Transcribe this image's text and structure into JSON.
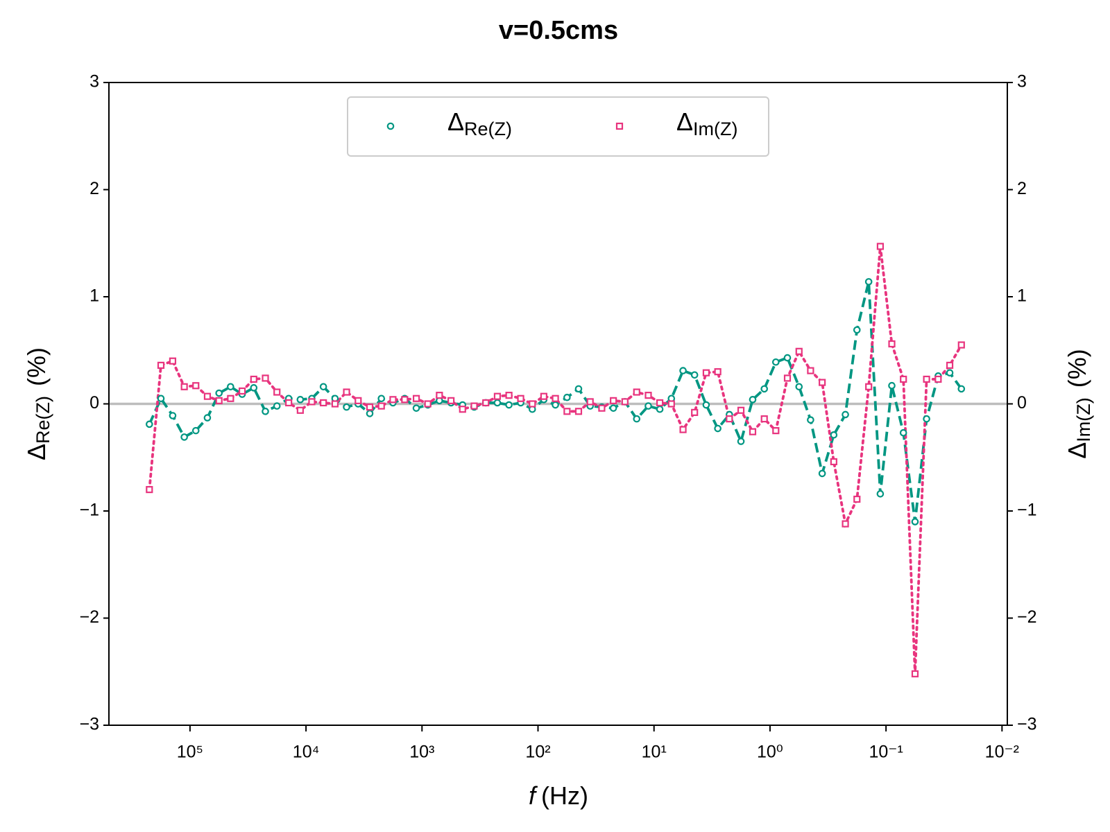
{
  "chart_data": {
    "type": "line",
    "title": "v=0.5cms",
    "x_label": {
      "italic": "f",
      "rest": "(Hz)"
    },
    "y_label": {
      "base": "Δ",
      "sub": "Re(Z)",
      "unit": "(%)"
    },
    "y2_label": {
      "base": "Δ",
      "sub": "Im(Z)",
      "unit": "(%)"
    },
    "xscale": "log",
    "xlim": [
      500000,
      0.009
    ],
    "xticks": [
      {
        "value": 100000,
        "label": "10⁵"
      },
      {
        "value": 10000,
        "label": "10⁴"
      },
      {
        "value": 1000,
        "label": "10³"
      },
      {
        "value": 100,
        "label": "10²"
      },
      {
        "value": 10,
        "label": "10¹"
      },
      {
        "value": 1,
        "label": "10⁰"
      },
      {
        "value": 0.1,
        "label": "10⁻¹"
      },
      {
        "value": 0.01,
        "label": "10⁻²"
      }
    ],
    "ylim": [
      -3,
      3
    ],
    "yticks": [
      {
        "value": -3,
        "label": "−3"
      },
      {
        "value": -2,
        "label": "−2"
      },
      {
        "value": -1,
        "label": "−1"
      },
      0,
      1,
      2,
      3
    ],
    "y2lim": [
      -3,
      3
    ],
    "y2ticks": [
      {
        "value": -3,
        "label": "−3"
      },
      {
        "value": -2,
        "label": "−2"
      },
      {
        "value": -1,
        "label": "−1"
      },
      0,
      1,
      2,
      3
    ],
    "hline": 0,
    "legend": "upper center",
    "x": [
      224000,
      178000,
      141000,
      112000,
      89100,
      70800,
      56200,
      44700,
      35500,
      28200,
      22400,
      17800,
      14100,
      11200,
      8910,
      7080,
      5620,
      4470,
      3550,
      2820,
      2240,
      1780,
      1410,
      1120,
      891,
      708,
      562,
      447,
      355,
      282,
      224,
      178,
      141,
      112,
      89.1,
      70.8,
      56.2,
      44.7,
      35.5,
      28.2,
      22.4,
      17.8,
      14.1,
      11.2,
      8.91,
      7.08,
      5.62,
      4.47,
      3.55,
      2.82,
      2.24,
      1.78,
      1.41,
      1.12,
      0.891,
      0.708,
      0.562,
      0.447,
      0.355,
      0.282,
      0.224,
      0.178,
      0.141,
      0.112,
      0.0891,
      0.0708,
      0.0562,
      0.0447,
      0.0355,
      0.0282,
      0.0224
    ],
    "series": [
      {
        "name": {
          "base": "Δ",
          "sub": "Re(Z)"
        },
        "color": "#009682",
        "marker": "circle",
        "linestyle": "dashed",
        "values": [
          -0.19,
          0.05,
          -0.11,
          -0.31,
          -0.25,
          -0.13,
          0.1,
          0.16,
          0.09,
          0.15,
          -0.07,
          -0.02,
          0.05,
          0.04,
          0.05,
          0.16,
          0.05,
          -0.03,
          0.0,
          -0.09,
          0.05,
          0.01,
          0.05,
          -0.04,
          -0.01,
          0.03,
          0.01,
          -0.01,
          -0.03,
          0.01,
          0.01,
          -0.01,
          0.01,
          -0.05,
          0.04,
          -0.01,
          0.06,
          0.14,
          -0.02,
          -0.03,
          -0.04,
          0.02,
          -0.14,
          -0.02,
          -0.05,
          0.05,
          0.31,
          0.27,
          -0.01,
          -0.23,
          -0.1,
          -0.35,
          0.04,
          0.14,
          0.39,
          0.43,
          0.16,
          -0.15,
          -0.65,
          -0.29,
          -0.1,
          0.69,
          1.14,
          -0.84,
          0.17,
          -0.27,
          -1.1,
          -0.14,
          0.26,
          0.29,
          0.14
        ]
      },
      {
        "name": {
          "base": "Δ",
          "sub": "Im(Z)"
        },
        "color": "#e8347e",
        "marker": "square",
        "linestyle": "dotted",
        "axis": "y2",
        "values": [
          -0.8,
          0.36,
          0.4,
          0.16,
          0.17,
          0.07,
          0.03,
          0.05,
          0.12,
          0.23,
          0.24,
          0.11,
          0.01,
          -0.06,
          0.02,
          0.01,
          0.0,
          0.11,
          0.03,
          -0.03,
          -0.02,
          0.04,
          0.04,
          0.05,
          0.0,
          0.08,
          0.03,
          -0.05,
          -0.02,
          0.01,
          0.07,
          0.08,
          0.05,
          0.0,
          0.07,
          0.05,
          -0.07,
          -0.07,
          0.02,
          -0.04,
          0.03,
          0.02,
          0.11,
          0.08,
          0.01,
          0.0,
          -0.24,
          -0.08,
          0.29,
          0.3,
          -0.14,
          -0.06,
          -0.26,
          -0.14,
          -0.25,
          0.24,
          0.49,
          0.31,
          0.2,
          -0.54,
          -1.12,
          -0.89,
          0.16,
          1.47,
          0.56,
          0.23,
          -2.52,
          0.23,
          0.23,
          0.36,
          0.55
        ]
      }
    ]
  }
}
